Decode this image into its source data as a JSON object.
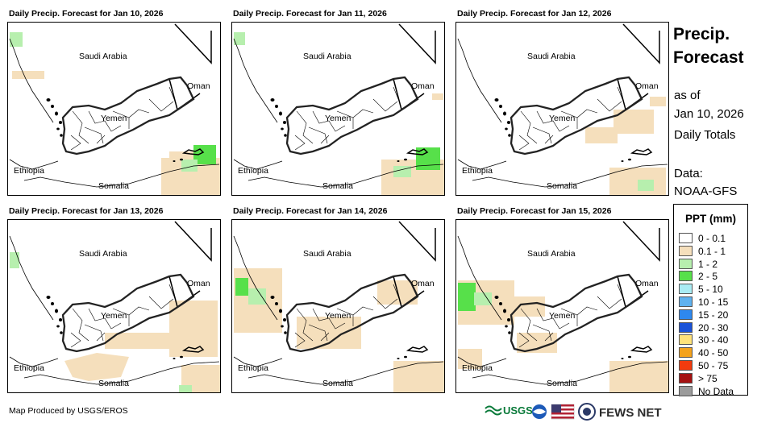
{
  "panels": [
    {
      "title": "Daily Precip. Forecast for Jan 10, 2026"
    },
    {
      "title": "Daily Precip. Forecast for Jan 11, 2026"
    },
    {
      "title": "Daily Precip. Forecast for Jan 12, 2026"
    },
    {
      "title": "Daily Precip. Forecast for Jan 13, 2026"
    },
    {
      "title": "Daily Precip. Forecast for Jan 14, 2026"
    },
    {
      "title": "Daily Precip. Forecast for Jan 15, 2026"
    }
  ],
  "map_labels": {
    "saudi": "Saudi Arabia",
    "oman": "Oman",
    "yemen": "Yemen",
    "ethiopia": "Ethiopia",
    "somalia": "Somalia"
  },
  "sidebar": {
    "title_line1": "Precip.",
    "title_line2": "Forecast",
    "as_of": "as of",
    "date": "Jan 10, 2026",
    "totals": "Daily Totals",
    "data_label": "Data:",
    "data_source": "NOAA-GFS"
  },
  "legend": {
    "title": "PPT (mm)",
    "items": [
      {
        "label": "0 - 0.1",
        "color": "#ffffff"
      },
      {
        "label": "0.1 - 1",
        "color": "#f5dfbc"
      },
      {
        "label": "1 - 2",
        "color": "#b7efae"
      },
      {
        "label": "2 - 5",
        "color": "#57e04a"
      },
      {
        "label": "5 - 10",
        "color": "#a9ecf3"
      },
      {
        "label": "10 - 15",
        "color": "#5fb2ef"
      },
      {
        "label": "15 - 20",
        "color": "#2e88ee"
      },
      {
        "label": "20 - 30",
        "color": "#1a52d8"
      },
      {
        "label": "30 - 40",
        "color": "#ffe27a"
      },
      {
        "label": "40 - 50",
        "color": "#f4a21c"
      },
      {
        "label": "50 - 75",
        "color": "#f23b0e"
      },
      {
        "label": "> 75",
        "color": "#a51111"
      },
      {
        "label": "No Data",
        "color": "#9b9b9b"
      }
    ]
  },
  "footer": {
    "credit": "Map Produced by USGS/EROS",
    "usgs": "USGS",
    "fewsnet": "FEWS NET"
  }
}
